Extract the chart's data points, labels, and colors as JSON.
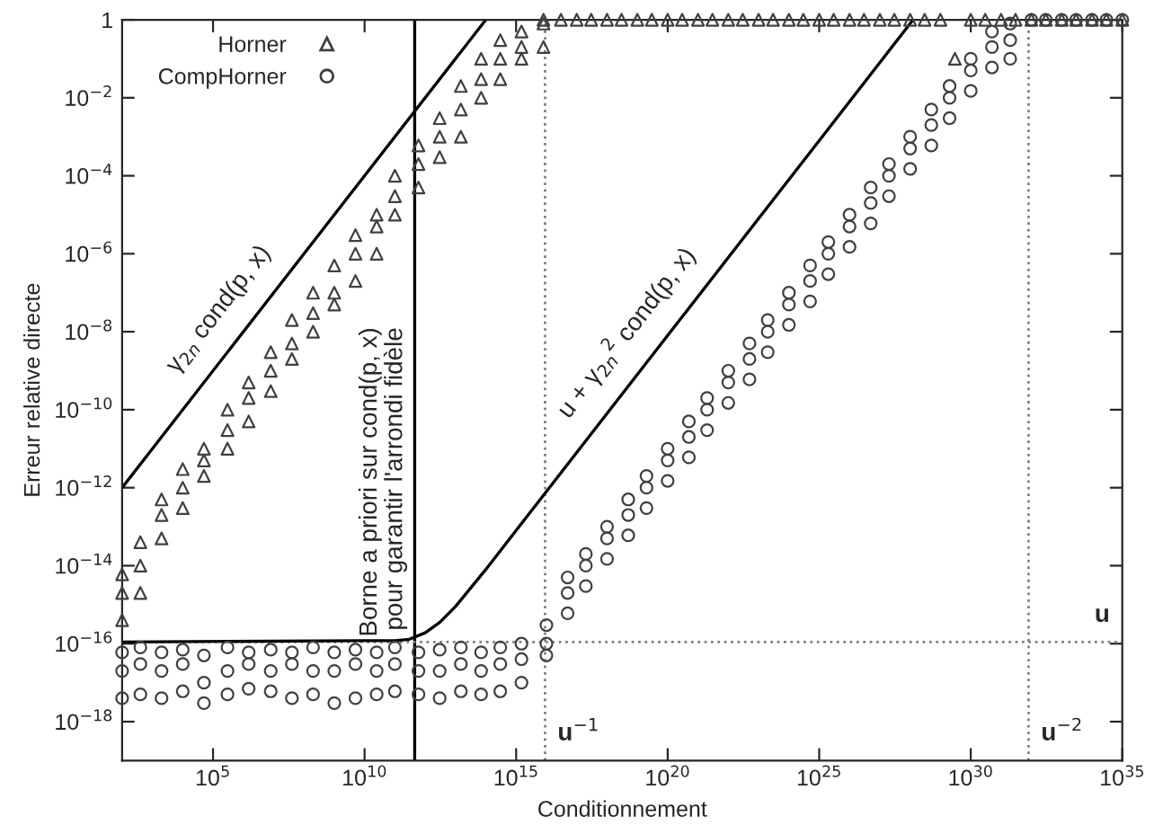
{
  "chart_data": {
    "type": "scatter",
    "xlabel": "Conditionnement",
    "ylabel": "Erreur relative directe",
    "log": "xy",
    "grid": false,
    "legend": "top left",
    "xlim": [
      100.0,
      1e+35
    ],
    "ylim": [
      1e-19,
      1
    ],
    "xticks": [
      {
        "value": 100000.0,
        "label": "10$^{5}$"
      },
      {
        "value": 10000000000.0,
        "label": "10$^{10}$"
      },
      {
        "value": 1000000000000000.0,
        "label": "10$^{15}$"
      },
      {
        "value": 1e+20,
        "label": "10$^{20}$"
      },
      {
        "value": 1e+25,
        "label": "10$^{25}$"
      },
      {
        "value": 1e+30,
        "label": "10$^{30}$"
      },
      {
        "value": 1e+35,
        "label": "10$^{35}$"
      }
    ],
    "yticks": [
      1,
      {
        "value": 0.01,
        "label": "10$^{−2}$"
      },
      {
        "value": 0.0001,
        "label": "10$^{−4}$"
      },
      {
        "value": 1e-06,
        "label": "10$^{−6}$"
      },
      {
        "value": 1e-08,
        "label": "10$^{−8}$"
      },
      {
        "value": 1e-10,
        "label": "10$^{−10}$"
      },
      {
        "value": 1e-12,
        "label": "10$^{−12}$"
      },
      {
        "value": 1e-14,
        "label": "10$^{−14}$"
      },
      {
        "value": 1e-16,
        "label": "10$^{−16}$"
      },
      {
        "value": 1e-18,
        "label": "10$^{−18}$"
      }
    ],
    "series": [
      {
        "name": "Horner",
        "marker": "triangle",
        "color": "#404040",
        "x": [
          100.0,
          100.0,
          100.0,
          400.0,
          400.0,
          400.0,
          2000.0,
          2000.0,
          2000.0,
          10000.0,
          10000.0,
          10000.0,
          50000.0,
          50000.0,
          50000.0,
          300000.0,
          300000.0,
          300000.0,
          1500000.0,
          1500000.0,
          1500000.0,
          8000000.0,
          8000000.0,
          8000000.0,
          40000000.0,
          40000000.0,
          40000000.0,
          200000000.0,
          200000000.0,
          200000000.0,
          1000000000.0,
          1000000000.0,
          1000000000.0,
          5000000000.0,
          5000000000.0,
          5000000000.0,
          25000000000.0,
          25000000000.0,
          25000000000.0,
          100000000000.0,
          100000000000.0,
          100000000000.0,
          600000000000.0,
          600000000000.0,
          600000000000.0,
          3000000000000.0,
          3000000000000.0,
          3000000000000.0,
          15000000000000.0,
          15000000000000.0,
          15000000000000.0,
          70000000000000.0,
          70000000000000.0,
          70000000000000.0,
          300000000000000.0,
          300000000000000.0,
          300000000000000.0,
          1500000000000000.0,
          1500000000000000.0,
          1500000000000000.0,
          8000000000000000.0,
          8000000000000000.0,
          8000000000000000.0,
          3e+16,
          1e+17,
          3e+17,
          1e+18,
          3e+18,
          1e+19,
          3e+19,
          1e+20,
          3e+20,
          1e+21,
          3e+21,
          1e+22,
          3e+22,
          1e+23,
          3e+23,
          1e+24,
          3e+24,
          1e+25,
          3e+25,
          1e+26,
          3e+26,
          1e+27,
          3e+27,
          1e+28,
          3e+28,
          1e+29,
          3e+29,
          1e+30,
          3e+30,
          1e+31,
          3e+31,
          1e+32,
          3e+32,
          1e+33,
          3e+33,
          1e+34,
          3e+34,
          1e+35
        ],
        "values": [
          6e-15,
          2e-15,
          4e-16,
          4e-14,
          1e-14,
          2e-15,
          2e-13,
          5e-13,
          5e-14,
          1e-12,
          3e-12,
          3e-13,
          5e-12,
          1e-11,
          2e-12,
          3e-11,
          1e-10,
          1e-11,
          2e-10,
          5e-10,
          5e-11,
          1e-09,
          3e-09,
          3e-10,
          5e-09,
          2e-08,
          2e-09,
          3e-08,
          1e-07,
          1e-08,
          1e-07,
          5e-07,
          5e-08,
          1e-06,
          3e-06,
          2e-07,
          5e-06,
          1e-05,
          1e-06,
          3e-05,
          0.0001,
          1e-05,
          0.0002,
          0.0006,
          5e-05,
          0.001,
          0.003,
          0.0003,
          0.005,
          0.02,
          0.001,
          0.03,
          0.1,
          0.01,
          0.1,
          0.3,
          0.03,
          0.2,
          0.5,
          0.1,
          1,
          0.8,
          0.2,
          1,
          1,
          1,
          1,
          1,
          1,
          1,
          1,
          1,
          1,
          1,
          1,
          1,
          1,
          1,
          1,
          1,
          1,
          1,
          1,
          1,
          1,
          1,
          1,
          1,
          1,
          0.1,
          1,
          1,
          1,
          1,
          1,
          1,
          1,
          1,
          1,
          1,
          1
        ]
      },
      {
        "name": "CompHorner",
        "marker": "circle",
        "color": "#404040",
        "x": [
          100.0,
          100.0,
          100.0,
          400.0,
          400.0,
          400.0,
          2000.0,
          2000.0,
          2000.0,
          10000.0,
          10000.0,
          10000.0,
          50000.0,
          50000.0,
          50000.0,
          300000.0,
          300000.0,
          300000.0,
          1500000.0,
          1500000.0,
          1500000.0,
          8000000.0,
          8000000.0,
          8000000.0,
          40000000.0,
          40000000.0,
          40000000.0,
          200000000.0,
          200000000.0,
          200000000.0,
          1000000000.0,
          1000000000.0,
          1000000000.0,
          5000000000.0,
          5000000000.0,
          5000000000.0,
          25000000000.0,
          25000000000.0,
          25000000000.0,
          100000000000.0,
          100000000000.0,
          100000000000.0,
          600000000000.0,
          600000000000.0,
          600000000000.0,
          3000000000000.0,
          3000000000000.0,
          3000000000000.0,
          15000000000000.0,
          15000000000000.0,
          15000000000000.0,
          70000000000000.0,
          70000000000000.0,
          70000000000000.0,
          300000000000000.0,
          300000000000000.0,
          300000000000000.0,
          1500000000000000.0,
          1500000000000000.0,
          1500000000000000.0,
          1e+16,
          1e+16,
          1e+16,
          5e+16,
          5e+16,
          5e+16,
          2e+17,
          2e+17,
          2e+17,
          1e+18,
          1e+18,
          1e+18,
          5e+18,
          5e+18,
          5e+18,
          2e+19,
          2e+19,
          2e+19,
          1e+20,
          1e+20,
          1e+20,
          5e+20,
          5e+20,
          5e+20,
          2e+21,
          2e+21,
          2e+21,
          1e+22,
          1e+22,
          1e+22,
          5e+22,
          5e+22,
          5e+22,
          2e+23,
          2e+23,
          2e+23,
          1e+24,
          1e+24,
          1e+24,
          5e+24,
          5e+24,
          5e+24,
          2e+25,
          2e+25,
          2e+25,
          1e+26,
          1e+26,
          1e+26,
          5e+26,
          5e+26,
          5e+26,
          2e+27,
          2e+27,
          2e+27,
          1e+28,
          1e+28,
          1e+28,
          5e+28,
          5e+28,
          5e+28,
          2e+29,
          2e+29,
          2e+29,
          1e+30,
          1e+30,
          1e+30,
          5e+30,
          5e+30,
          5e+30,
          2e+31,
          2e+31,
          2e+31,
          1e+32,
          3e+32,
          1e+33,
          3e+33,
          1e+34,
          3e+34,
          1e+35
        ],
        "values": [
          6e-17,
          2e-17,
          4e-18,
          8e-17,
          3e-17,
          5e-18,
          6e-17,
          2e-17,
          4e-18,
          7e-17,
          3e-17,
          6e-18,
          5e-17,
          1e-17,
          3e-18,
          8e-17,
          2e-17,
          5e-18,
          6e-17,
          3e-17,
          7e-18,
          7e-17,
          2e-17,
          6e-18,
          6e-17,
          3e-17,
          4e-18,
          8e-17,
          2e-17,
          5e-18,
          6e-17,
          2e-17,
          3e-18,
          7e-17,
          3e-17,
          4e-18,
          6e-17,
          2e-17,
          5e-18,
          8e-17,
          3e-17,
          6e-18,
          6e-17,
          2e-17,
          5e-18,
          7e-17,
          2e-17,
          4e-18,
          8e-17,
          3e-17,
          6e-18,
          6e-17,
          2e-17,
          5e-18,
          8e-17,
          3e-17,
          6e-18,
          1e-16,
          4e-17,
          1e-17,
          3e-16,
          1e-16,
          5e-17,
          2e-15,
          5e-15,
          6e-16,
          1e-14,
          2e-14,
          3e-15,
          5e-14,
          1e-13,
          1.5e-14,
          2e-13,
          5e-13,
          6e-14,
          1e-12,
          2e-12,
          3e-13,
          5e-12,
          1e-11,
          1.5e-12,
          2e-11,
          5e-11,
          6e-12,
          1e-10,
          2e-10,
          3e-11,
          5e-10,
          1e-09,
          1.5e-10,
          2e-09,
          5e-09,
          6e-10,
          1e-08,
          2e-08,
          3e-09,
          5e-08,
          1e-07,
          1.5e-08,
          2e-07,
          5e-07,
          6e-08,
          1e-06,
          2e-06,
          3e-07,
          5e-06,
          1e-05,
          1.5e-06,
          2e-05,
          5e-05,
          6e-06,
          0.0001,
          0.0002,
          3e-05,
          0.0005,
          0.001,
          0.00015,
          0.002,
          0.005,
          0.0006,
          0.01,
          0.02,
          0.003,
          0.05,
          0.1,
          0.015,
          0.2,
          0.5,
          0.06,
          0.8,
          0.3,
          0.1,
          1,
          1,
          1,
          1,
          1,
          1,
          1
        ]
      },
      {
        "type": "line",
        "color": "#000000",
        "line_style": "solid",
        "x": [
          100.0,
          100000000000000.0
        ],
        "values": [
          1e-12,
          1
        ]
      },
      {
        "type": "line",
        "color": "#000000",
        "line_style": "solid",
        "x": [
          100.0,
          10000000000.0,
          100000000000.0,
          300000000000.0,
          1000000000000.0,
          3000000000000.0,
          10000000000000.0,
          100000000000000.0,
          1000000000000000.0,
          1e+20,
          1e+25,
          1.25e+28
        ],
        "values": [
          1.1e-16,
          1.2e-16,
          1.2e-16,
          1.3e-16,
          1.9e-16,
          3.5e-16,
          9e-16,
          8e-15,
          8e-14,
          8e-09,
          0.0008,
          1
        ]
      }
    ],
    "ref_lines": [
      {
        "axis": "x",
        "value": 450000000000.0,
        "label": "Borne a priori sur cond(p, x)\npour garantir l'arrondi fidèle",
        "color": "#000000",
        "line_style": "solid"
      },
      {
        "axis": "x",
        "value": 9000000000000000.0,
        "label": "u$^{−1}$",
        "color": "#808080",
        "line_style": "dotted"
      },
      {
        "axis": "x",
        "value": 8.1e+31,
        "label": "u$^{−2}$",
        "color": "#808080",
        "line_style": "dotted"
      },
      {
        "axis": "y",
        "value": 1.1e-16,
        "label": "u",
        "color": "#808080",
        "line_style": "dotted"
      }
    ],
    "annotations": [
      {
        "text": "γ$_{2n}$ cond(p, x)",
        "x": 1000000.0,
        "y": 1e-08
      },
      {
        "text": "u + γ$_{2n}$$^{2}$ cond(p, x)",
        "x": 3e+19,
        "y": 2.4e-09
      }
    ]
  }
}
